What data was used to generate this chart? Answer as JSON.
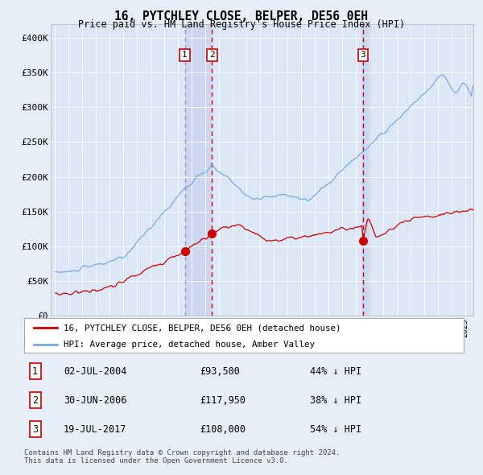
{
  "title": "16, PYTCHLEY CLOSE, BELPER, DE56 0EH",
  "subtitle": "Price paid vs. HM Land Registry's House Price Index (HPI)",
  "legend_line1": "16, PYTCHLEY CLOSE, BELPER, DE56 0EH (detached house)",
  "legend_line2": "HPI: Average price, detached house, Amber Valley",
  "footnote1": "Contains HM Land Registry data © Crown copyright and database right 2024.",
  "footnote2": "This data is licensed under the Open Government Licence v3.0.",
  "transactions": [
    {
      "num": 1,
      "date": "02-JUL-2004",
      "price": 93500,
      "pct": "44%",
      "dir": "↓"
    },
    {
      "num": 2,
      "date": "30-JUN-2006",
      "price": 117950,
      "pct": "38%",
      "dir": "↓"
    },
    {
      "num": 3,
      "date": "19-JUL-2017",
      "price": 108000,
      "pct": "54%",
      "dir": "↓"
    }
  ],
  "transaction_dates_decimal": [
    2004.5,
    2006.5,
    2017.54
  ],
  "bg_color": "#e8eef8",
  "plot_bg": "#dce8f8",
  "red_color": "#cc0000",
  "blue_color": "#7aaadd",
  "ylim": [
    0,
    420000
  ],
  "yticks": [
    0,
    50000,
    100000,
    150000,
    200000,
    250000,
    300000,
    350000,
    400000
  ],
  "ytick_labels": [
    "£0",
    "£50K",
    "£100K",
    "£150K",
    "£200K",
    "£250K",
    "£300K",
    "£350K",
    "£400K"
  ],
  "xlim_start": 1994.7,
  "xlim_end": 2025.6
}
